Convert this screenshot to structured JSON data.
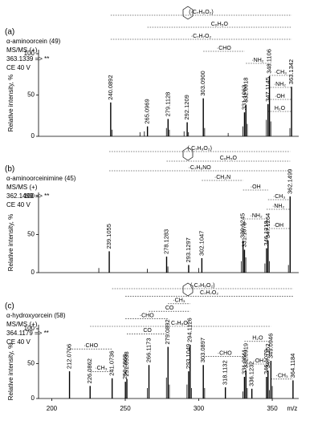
{
  "chart_data": [
    {
      "type": "bar",
      "panel_label": "(a)",
      "info": [
        "α-aminoorcein (49)",
        "MS/MS (+)",
        "363.1339 => **",
        "CE 40 V"
      ],
      "ylabel": "Relative intensity, %",
      "xlim": [
        191,
        368
      ],
      "ylim": [
        0,
        100
      ],
      "yticks": [
        0,
        50,
        100
      ],
      "color": "#000000",
      "peaks": {
        "x": [
          240.0892,
          265.0969,
          279.1128,
          292.1209,
          303.09,
          331.1063,
          332.0918,
          347.1145,
          348.1106,
          363.1342
        ],
        "x_labels": [
          "240.0892",
          "265.0969",
          "279.1128",
          "292.1209",
          "303.0900",
          "331.1063",
          "332.0918",
          "347.1145",
          "348.1106",
          "363.1342"
        ],
        "values": [
          41,
          12,
          21,
          17,
          46,
          29,
          38,
          39,
          73,
          60
        ]
      },
      "minor": {
        "x": [
          241,
          260,
          263,
          278,
          280,
          290,
          293,
          304,
          320,
          330,
          333,
          346,
          349,
          362
        ],
        "values": [
          8,
          5,
          6,
          10,
          8,
          6,
          5,
          10,
          4,
          12,
          15,
          20,
          18,
          10
        ]
      },
      "annotations": [
        {
          "text": "(·C₇H₆O₂)",
          "from": 240.0892,
          "to": 363.1342
        },
        {
          "text": "C₆H₅O",
          "from": 265.0969,
          "to": 363.1342
        },
        {
          "text": "·C₇H₇O₂",
          "from": 240.0892,
          "to": 363.1342
        },
        {
          "text": "·CHO",
          "from": 303.09,
          "to": 331.1063
        },
        {
          "text": "·NH₂",
          "from": 332.0918,
          "to": 348.1106
        },
        {
          "text": "·CH₃",
          "from": 348.1106,
          "to": 363.1342
        },
        {
          "text": "·NH₂",
          "from": 347.1145,
          "to": 363.1342
        },
        {
          "text": "·OH",
          "from": 347.1145,
          "to": 363.1342
        },
        {
          "text": "H₂O",
          "from": 347.1145,
          "to": 363.1342
        }
      ]
    },
    {
      "type": "bar",
      "panel_label": "(b)",
      "info": [
        "α-aminoorceinimine (45)",
        "MS/MS (+)",
        "362.1499 => **",
        "CE 40 V"
      ],
      "ylabel": "Relative intensity, %",
      "xlim": [
        191,
        368
      ],
      "ylim": [
        0,
        100
      ],
      "yticks": [
        0,
        50,
        100
      ],
      "color": "#000000",
      "peaks": {
        "x": [
          239.1055,
          278.1283,
          293.1297,
          302.1047,
          330.1245,
          331.1078,
          346.1318,
          347.1264,
          362.1499
        ],
        "x_labels": [
          "239.1055",
          "278.1283",
          "293.1297",
          "302.1047",
          "330.1245",
          "331.1078",
          "346.1318",
          "347.1264",
          "362.1499"
        ],
        "values": [
          28,
          21,
          10,
          19,
          42,
          30,
          32,
          42,
          100
        ]
      },
      "minor": {
        "x": [
          232,
          265,
          279,
          300,
          329,
          332,
          345,
          348,
          361
        ],
        "values": [
          6,
          5,
          8,
          6,
          15,
          20,
          12,
          15,
          10
        ]
      },
      "annotations": [
        {
          "text": "(·C₇H₆O₂)",
          "from": 239.1055,
          "to": 362.1499
        },
        {
          "text": "C₆H₅O",
          "from": 278.1283,
          "to": 362.1499
        },
        {
          "text": "·C₇H₆NO",
          "from": 239.1055,
          "to": 362.1499
        },
        {
          "text": "·CH₂N",
          "from": 302.1047,
          "to": 330.1245
        },
        {
          "text": "·OH",
          "from": 330.1245,
          "to": 347.1264
        },
        {
          "text": "·CH₃",
          "from": 347.1264,
          "to": 362.1499
        },
        {
          "text": "·NH₂",
          "from": 346.1318,
          "to": 362.1499
        },
        {
          "text": "·NH₂",
          "from": 331.1078,
          "to": 347.1264
        },
        {
          "text": "·OH",
          "from": 346.1318,
          "to": 362.1499
        }
      ]
    },
    {
      "type": "bar",
      "panel_label": "(c)",
      "info": [
        "α-hydroxyorcein (58)",
        "MS/MS (+)",
        "364.1179 => **",
        "CE 40 V"
      ],
      "ylabel": "Relative intensity, %",
      "xlim": [
        191,
        368
      ],
      "ylim": [
        0,
        100
      ],
      "yticks": [
        0,
        50,
        100
      ],
      "xticks": [
        200,
        250,
        300,
        350
      ],
      "xlabel": "m/z",
      "color": "#000000",
      "peaks": {
        "x": [
          212.0706,
          226.0862,
          241.0736,
          250.0868,
          251.0938,
          266.1173,
          279.0892,
          293.1049,
          294.1126,
          303.0897,
          318.1132,
          331.0841,
          332.0919,
          336.1232,
          346.1079,
          347.1152,
          349.0946,
          364.1184
        ],
        "x_labels": [
          "212.0706",
          "226.0862",
          "241.0736",
          "250.0868",
          "251.0938",
          "266.1173",
          "279.0892",
          "293.1049",
          "294.1126",
          "303.0897",
          "318.1132",
          "331.0841",
          "332.0919",
          "336.1232",
          "346.1079",
          "347.1152",
          "349.0946",
          "364.1184"
        ],
        "values": [
          39,
          18,
          29,
          24,
          28,
          48,
          74,
          39,
          77,
          48,
          16,
          31,
          40,
          14,
          31,
          40,
          54,
          26
        ]
      },
      "minor": {
        "x": [
          265,
          278,
          280,
          292,
          295,
          304,
          330,
          333,
          348,
          350
        ],
        "values": [
          15,
          30,
          20,
          20,
          15,
          15,
          10,
          15,
          12,
          18
        ]
      },
      "annotations": [
        {
          "text": "(·C₇H₆O₂)",
          "from": 241.0736,
          "to": 364.1184
        },
        {
          "text": "C₇H₇O₂",
          "from": 250.0868,
          "to": 364.1184
        },
        {
          "text": "·CH₃",
          "from": 279.0892,
          "to": 294.1126
        },
        {
          "text": "CO",
          "from": 266.1173,
          "to": 294.1126
        },
        {
          "text": "·CHO",
          "from": 250.0868,
          "to": 279.0892
        },
        {
          "text": "C₇H₆O₂",
          "from": 226.0862,
          "to": 349.0946
        },
        {
          "text": "CO",
          "from": 251.0938,
          "to": 279.0892
        },
        {
          "text": "H₂O",
          "from": 331.0841,
          "to": 349.0946
        },
        {
          "text": "·CHO",
          "from": 212.0706,
          "to": 241.0736
        },
        {
          "text": "·CHO",
          "from": 303.0897,
          "to": 332.0919
        },
        {
          "text": "·OH",
          "from": 332.0919,
          "to": 349.0946
        },
        {
          "text": "·CH₃",
          "from": 226.0862,
          "to": 241.0736
        },
        {
          "text": "·CH₃",
          "from": 349.0946,
          "to": 364.1184
        }
      ]
    }
  ]
}
